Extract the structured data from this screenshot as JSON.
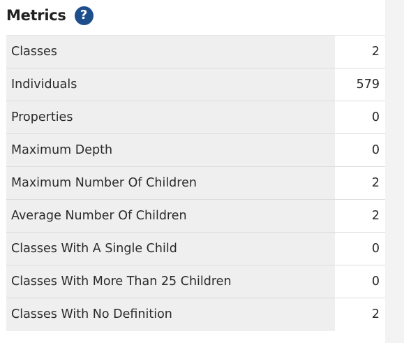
{
  "header": {
    "title": "Metrics",
    "help_icon_glyph": "?",
    "help_icon": "question-circle-icon",
    "accent_color": "#1f4e8c"
  },
  "metrics": [
    {
      "label": "Classes",
      "value": "2"
    },
    {
      "label": "Individuals",
      "value": "579"
    },
    {
      "label": "Properties",
      "value": "0"
    },
    {
      "label": "Maximum Depth",
      "value": "0"
    },
    {
      "label": "Maximum Number Of Children",
      "value": "2"
    },
    {
      "label": "Average Number Of Children",
      "value": "2"
    },
    {
      "label": "Classes With A Single Child",
      "value": "0"
    },
    {
      "label": "Classes With More Than 25 Children",
      "value": "0"
    },
    {
      "label": "Classes With No Definition",
      "value": "2"
    }
  ]
}
